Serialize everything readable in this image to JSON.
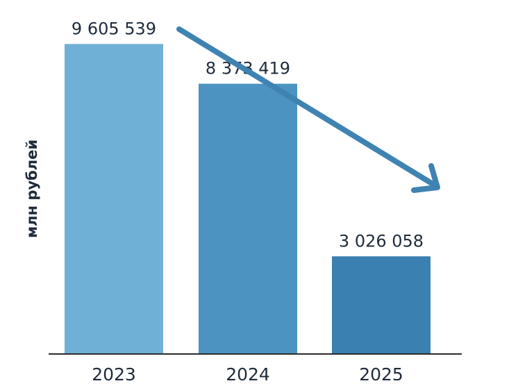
{
  "chart_data": {
    "type": "bar",
    "title": "",
    "xlabel": "",
    "ylabel": "млн рублей",
    "categories": [
      "2023",
      "2024",
      "2025"
    ],
    "values": [
      9605539,
      8373419,
      3026058
    ],
    "value_labels": [
      "9 605 539",
      "8 373 419",
      "3 026 058"
    ],
    "ylim": [
      0,
      10000000
    ],
    "grid": false,
    "legend": "none",
    "annotations": [
      {
        "type": "trend-arrow",
        "direction": "down"
      }
    ],
    "colors": {
      "bars": [
        "#6fb1d6",
        "#4d93c1",
        "#3a80b0"
      ],
      "arrow": "#3f83b3",
      "text": "#1f2b3a",
      "axis": "#2b2b2b"
    }
  }
}
